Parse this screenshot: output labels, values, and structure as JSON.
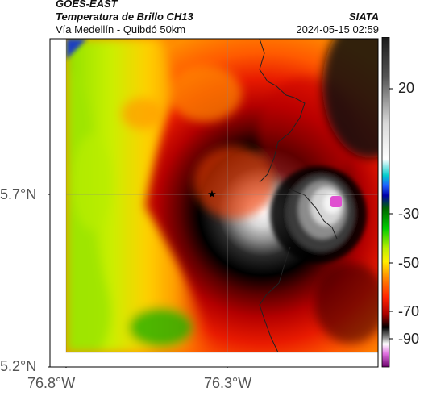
{
  "header": {
    "satellite": "GOES-EAST",
    "product": "Temperatura de Brillo CH13",
    "region": "Vía Medellín - Quibdó 50km",
    "agency": "SIATA",
    "timestamp": "2024-05-15 02:59"
  },
  "axes": {
    "lat_ticks": [
      "5.7°N",
      "5.2°N"
    ],
    "lon_ticks": [
      "76.8°W",
      "76.3°W"
    ]
  },
  "colorbar": {
    "ticks": [
      "20",
      "-30",
      "-50",
      "-70",
      "-90"
    ],
    "stops": [
      "#5a006a",
      "#c040c0",
      "#f0a0f0",
      "#ffffff",
      "#b0b0b0",
      "#303030",
      "#000000",
      "#5a0000",
      "#c00000",
      "#ff3300",
      "#ff8800",
      "#ffdd00",
      "#99ee00",
      "#00cc00",
      "#006600",
      "#00cccc",
      "#1e90ff",
      "#0000aa",
      "#ffffff",
      "#bbbbbb",
      "#666666",
      "#1a1a1a"
    ]
  },
  "map": {
    "marker": "star",
    "marker_color": "#000000"
  }
}
